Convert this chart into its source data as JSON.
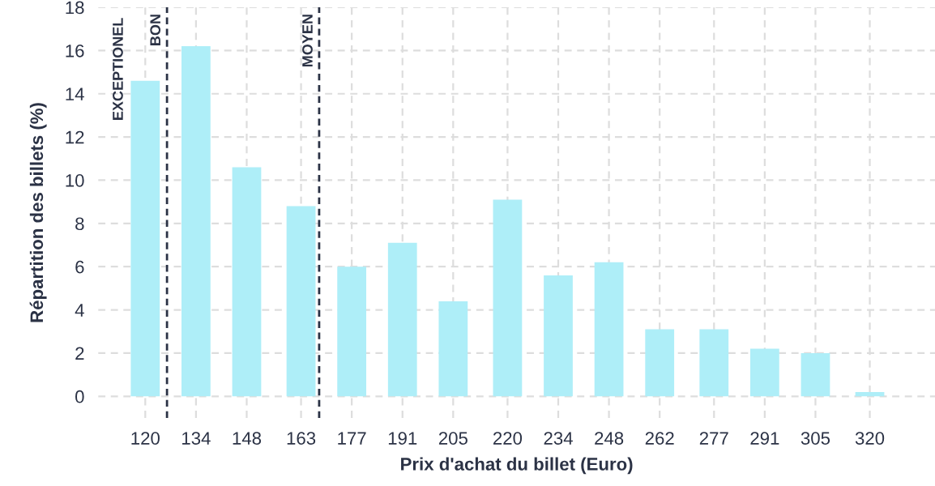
{
  "chart_data": {
    "type": "bar",
    "xlabel": "Prix d'achat du billet (Euro)",
    "ylabel": "Répartition des billets (%)",
    "x": [
      120,
      134,
      148,
      163,
      177,
      191,
      205,
      220,
      234,
      248,
      262,
      277,
      291,
      305,
      320
    ],
    "values": [
      14.6,
      16.2,
      10.6,
      8.8,
      6.0,
      7.1,
      4.4,
      9.1,
      5.6,
      6.2,
      3.1,
      3.1,
      2.2,
      2.0,
      0.2
    ],
    "color": "#aeeef8",
    "xlim": [
      107,
      338
    ],
    "xticks": [
      120,
      134,
      148,
      163,
      177,
      191,
      205,
      220,
      234,
      248,
      262,
      277,
      291,
      305,
      320
    ],
    "ylim": [
      -1,
      18
    ],
    "yticks": [
      0,
      2,
      4,
      6,
      8,
      10,
      12,
      14,
      16,
      18
    ],
    "grid": true,
    "ref_lines": [
      {
        "axis": "x",
        "value": 126,
        "label": "BON",
        "color": "#2b3245",
        "line_style": "dashed"
      },
      {
        "axis": "x",
        "value": 168,
        "label": "MOYEN",
        "color": "#2b3245",
        "line_style": "dashed"
      }
    ],
    "annotations": [
      "EXCEPTIONEL"
    ]
  }
}
